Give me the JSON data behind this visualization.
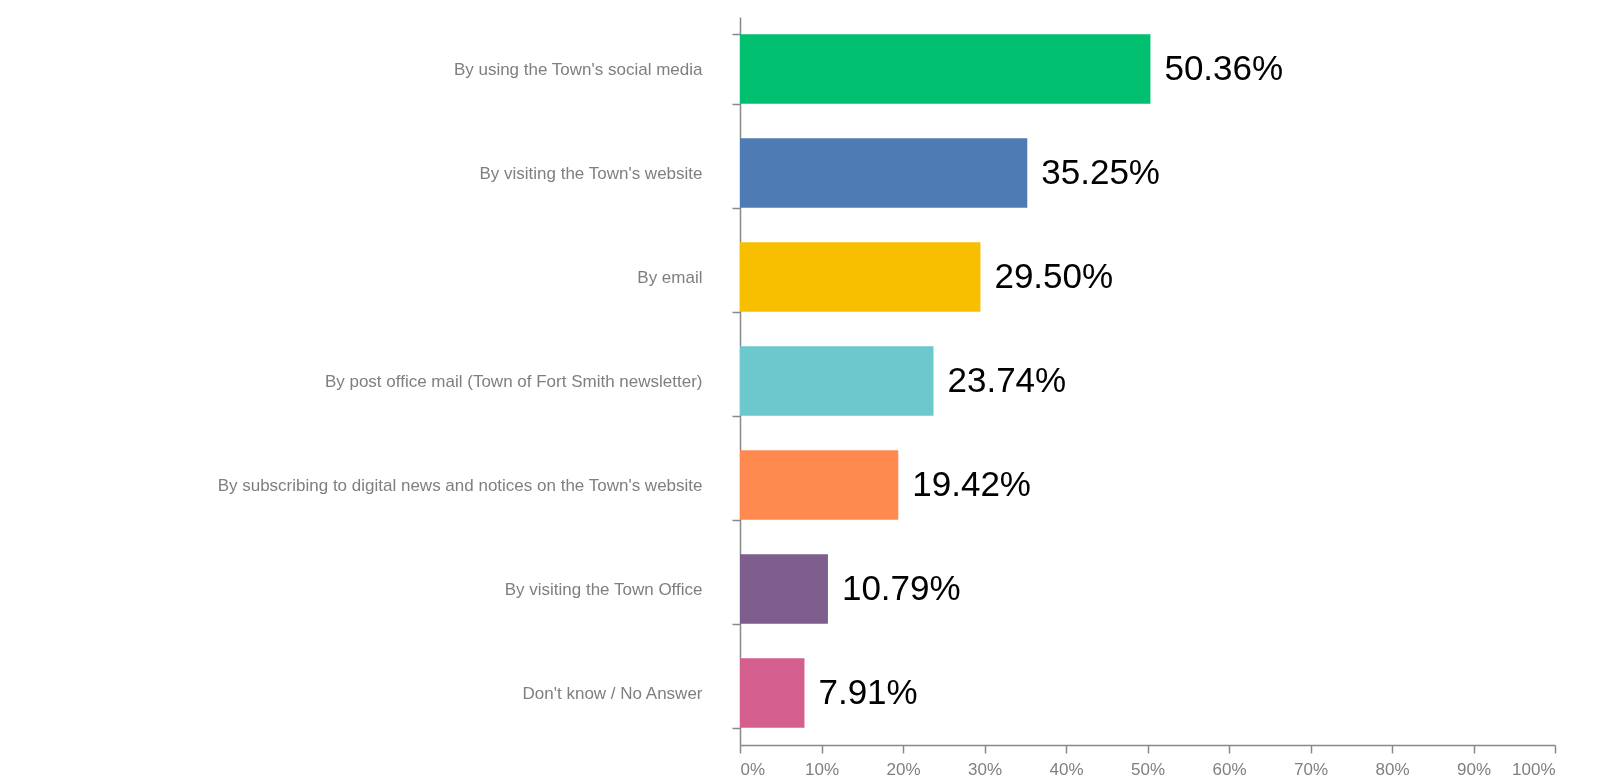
{
  "chart_data": {
    "type": "bar",
    "orientation": "horizontal",
    "categories": [
      "By using the Town's social media",
      "By visiting the Town's website",
      "By email",
      "By post office mail (Town of Fort Smith newsletter)",
      "By subscribing to digital news and notices on the Town's website",
      "By visiting the Town Office",
      "Don't know / No Answer"
    ],
    "values": [
      50.36,
      35.25,
      29.5,
      23.74,
      19.42,
      10.79,
      7.91
    ],
    "value_labels": [
      "50.36%",
      "35.25%",
      "29.50%",
      "23.74%",
      "19.42%",
      "10.79%",
      "7.91%"
    ],
    "colors": [
      "#00c070",
      "#4e7bb4",
      "#f8be00",
      "#6cc8cc",
      "#ff8a50",
      "#7e5e8f",
      "#d45f8e"
    ],
    "xlim": [
      0,
      100
    ],
    "xticks": [
      {
        "value": 0,
        "label": "0%"
      },
      {
        "value": 10,
        "label": "10%"
      },
      {
        "value": 20,
        "label": "20%"
      },
      {
        "value": 30,
        "label": "30%"
      },
      {
        "value": 40,
        "label": "40%"
      },
      {
        "value": 50,
        "label": "50%"
      },
      {
        "value": 60,
        "label": "60%"
      },
      {
        "value": 70,
        "label": "70%"
      },
      {
        "value": 80,
        "label": "80%"
      },
      {
        "value": 90,
        "label": "90%"
      },
      {
        "value": 100,
        "label": "100%"
      }
    ]
  }
}
